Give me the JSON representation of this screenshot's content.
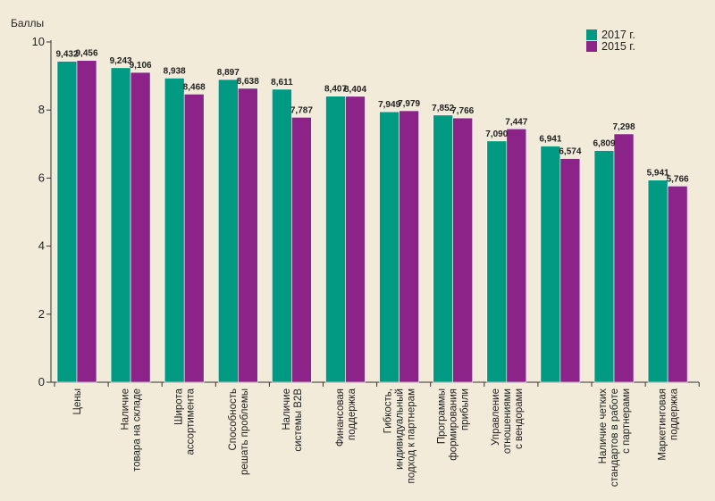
{
  "chart_data": {
    "type": "bar",
    "ylabel": "Баллы",
    "ylim": [
      0,
      10
    ],
    "yticks": [
      0,
      2,
      4,
      6,
      8,
      10
    ],
    "grid": false,
    "legend_position": "top-right",
    "categories": [
      [
        "Цены"
      ],
      [
        "Наличие",
        "товара на складе"
      ],
      [
        "Широта",
        "ассортимента"
      ],
      [
        "Способность",
        "решать проблемы"
      ],
      [
        "Наличие",
        "системы B2B"
      ],
      [
        "Финансовая",
        "поддержка"
      ],
      [
        "Гибкость,",
        "индивидуальный",
        "подход к партнерам"
      ],
      [
        "Программы",
        "формирования",
        "прибыли"
      ],
      [
        "Управление",
        "отношениями",
        "с вендорами"
      ],
      [],
      [
        "Наличие четких",
        "стандартов в работе",
        "с партнерами"
      ],
      [
        "Маркетинговая",
        "поддержка"
      ]
    ],
    "series": [
      {
        "name": "2017 г.",
        "color": "#009a82",
        "values": [
          9.432,
          9.243,
          8.938,
          8.897,
          8.611,
          8.407,
          7.949,
          7.852,
          7.09,
          6.941,
          6.809,
          5.941
        ],
        "labels": [
          "9,432",
          "9,243",
          "8,938",
          "8,897",
          "8,611",
          "8,407",
          "7,949",
          "7,852",
          "7,090",
          "6,941",
          "6,809",
          "5,941"
        ]
      },
      {
        "name": "2015 г.",
        "color": "#8c2389",
        "values": [
          9.456,
          9.106,
          8.468,
          8.638,
          7.787,
          8.404,
          7.979,
          7.766,
          7.447,
          6.574,
          7.298,
          5.766
        ],
        "labels": [
          "9,456",
          "9,106",
          "8,468",
          "8,638",
          "7,787",
          "8,404",
          "7,979",
          "7,766",
          "7,447",
          "6,574",
          "7,298",
          "5,766"
        ]
      }
    ]
  }
}
